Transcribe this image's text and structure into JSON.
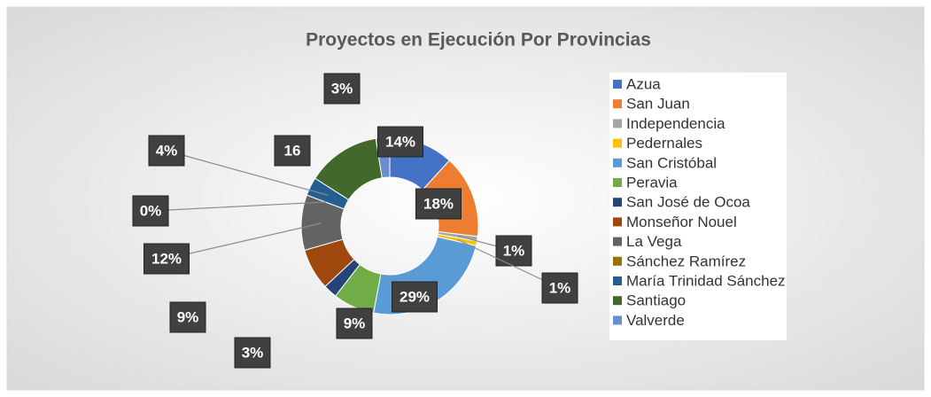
{
  "chart_data": {
    "type": "donut",
    "title": "Proyectos en Ejecución Por Provincias",
    "categories": [
      "Azua",
      "San Juan",
      "Independencia",
      "Pedernales",
      "San Cristóbal",
      "Peravia",
      "San José de Ocoa",
      "Monseñor Nouel",
      "La Vega",
      "Sánchez Ramírez",
      "María Trinidad Sánchez",
      "Santiago",
      "Valverde"
    ],
    "values": [
      14,
      18,
      1,
      1,
      29,
      9,
      3,
      9,
      12,
      0,
      4,
      16,
      3
    ],
    "value_labels": [
      "14%",
      "18%",
      "1%",
      "1%",
      "29%",
      "9%",
      "3%",
      "9%",
      "12%",
      "0%",
      "4%",
      "16",
      "3%"
    ],
    "colors": [
      "#4472c4",
      "#ed7d31",
      "#a5a5a5",
      "#ffc000",
      "#5b9bd5",
      "#70ad47",
      "#264478",
      "#9e480e",
      "#636363",
      "#997300",
      "#255e91",
      "#43682b",
      "#698ed0"
    ],
    "legend": "right"
  }
}
